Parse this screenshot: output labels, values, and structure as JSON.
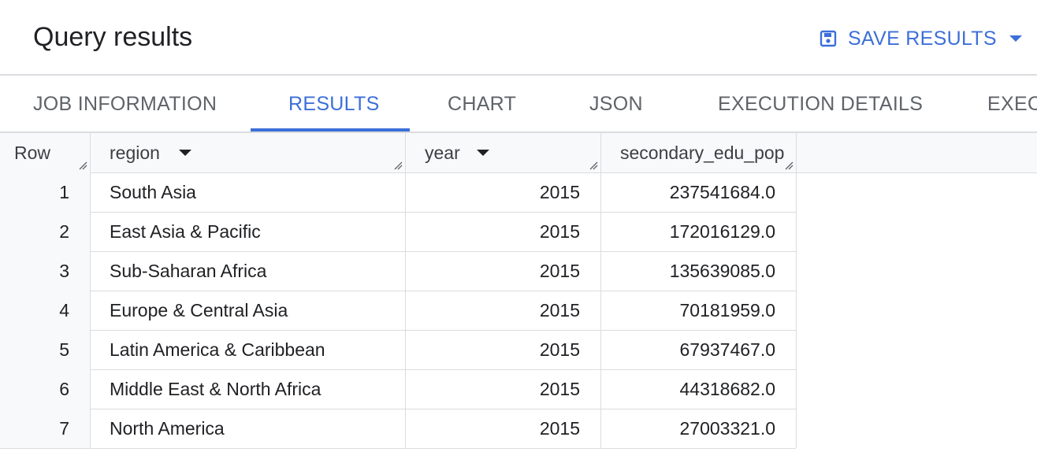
{
  "header": {
    "title": "Query results",
    "save_label": "SAVE RESULTS",
    "save_icon": "floppy-disk-icon",
    "dropdown_icon": "caret-down-icon"
  },
  "tabs": [
    {
      "label": "JOB INFORMATION",
      "active": false
    },
    {
      "label": "RESULTS",
      "active": true
    },
    {
      "label": "CHART",
      "active": false
    },
    {
      "label": "JSON",
      "active": false
    },
    {
      "label": "EXECUTION DETAILS",
      "active": false
    },
    {
      "label": "EXEC",
      "active": false
    }
  ],
  "table": {
    "columns": [
      "Row",
      "region",
      "year",
      "secondary_edu_pop"
    ],
    "rows": [
      [
        "1",
        "South Asia",
        "2015",
        "237541684.0"
      ],
      [
        "2",
        "East Asia & Pacific",
        "2015",
        "172016129.0"
      ],
      [
        "3",
        "Sub-Saharan Africa",
        "2015",
        "135639085.0"
      ],
      [
        "4",
        "Europe & Central Asia",
        "2015",
        "70181959.0"
      ],
      [
        "5",
        "Latin America & Caribbean",
        "2015",
        "67937467.0"
      ],
      [
        "6",
        "Middle East & North Africa",
        "2015",
        "44318682.0"
      ],
      [
        "7",
        "North America",
        "2015",
        "27003321.0"
      ]
    ]
  },
  "colors": {
    "accent": "#3c6fd9",
    "text": "#202124",
    "muted": "#5f6368",
    "border": "#dadce0",
    "header_bg": "#f8f9fa"
  }
}
